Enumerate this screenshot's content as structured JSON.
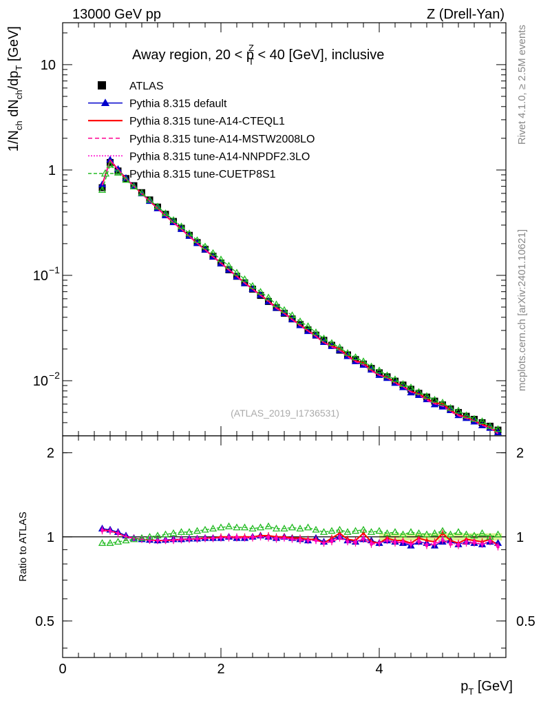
{
  "header": {
    "energy": "13000 GeV pp",
    "process": "Z (Drell-Yan)",
    "title": "Away region, 20 < p",
    "title_sup": "Z",
    "title_sub": "T",
    "title_tail": " < 40 [GeV], inclusive"
  },
  "side": {
    "rivet": "Rivet 4.1.0, ≥ 2.5M events",
    "mcplots": "mcplots.cern.ch [arXiv:2401.10621]"
  },
  "analysis_id": "(ATLAS_2019_I1736531)",
  "colors": {
    "data": "#000000",
    "default": "#0000cc",
    "cteql1": "#ff0000",
    "mstw": "#ff0090",
    "nnpdf": "#ff00cc",
    "cuetp8s1": "#22bb22",
    "band": "#ccee66"
  },
  "chart_data": {
    "type": "line",
    "title": "Away region, 20 < pT^Z < 40 [GeV], inclusive",
    "xlabel": "p_T [GeV]",
    "ylabel": "1/N_ch dN_ch/dp_T [GeV]",
    "ratio_ylabel": "Ratio to ATLAS",
    "xlim": [
      0,
      5.6
    ],
    "ylim": [
      0.003,
      25
    ],
    "ratio_ylim": [
      0.37,
      2.3
    ],
    "yscale": "log",
    "x_ticks": [
      "0",
      "2",
      "4"
    ],
    "y_ticks": [
      {
        "base": "10",
        "exp": "−2"
      },
      {
        "base": "10",
        "exp": "−1"
      },
      {
        "base": "1",
        "exp": ""
      },
      {
        "base": "10",
        "exp": ""
      }
    ],
    "ratio_ticks": [
      "0.5",
      "1",
      "2"
    ],
    "x": [
      0.5,
      0.6,
      0.7,
      0.8,
      0.9,
      1.0,
      1.1,
      1.2,
      1.3,
      1.4,
      1.5,
      1.6,
      1.7,
      1.8,
      1.9,
      2.0,
      2.1,
      2.2,
      2.3,
      2.4,
      2.5,
      2.6,
      2.7,
      2.8,
      2.9,
      3.0,
      3.1,
      3.2,
      3.3,
      3.4,
      3.5,
      3.6,
      3.7,
      3.8,
      3.9,
      4.0,
      4.1,
      4.2,
      4.3,
      4.4,
      4.5,
      4.6,
      4.7,
      4.8,
      4.9,
      5.0,
      5.1,
      5.2,
      5.3,
      5.4,
      5.5
    ],
    "data_values": [
      0.68,
      1.18,
      0.98,
      0.83,
      0.71,
      0.61,
      0.52,
      0.445,
      0.38,
      0.325,
      0.28,
      0.24,
      0.205,
      0.177,
      0.152,
      0.131,
      0.113,
      0.098,
      0.085,
      0.074,
      0.0645,
      0.0565,
      0.0495,
      0.0437,
      0.0386,
      0.0342,
      0.0304,
      0.0271,
      0.0242,
      0.0217,
      0.0195,
      0.0176,
      0.0159,
      0.0144,
      0.0131,
      0.0119,
      0.0109,
      0.0099,
      0.0091,
      0.0083,
      0.0076,
      0.007,
      0.0064,
      0.0059,
      0.0054,
      0.005,
      0.0046,
      0.0043,
      0.004,
      0.0037,
      0.0034
    ],
    "series": [
      {
        "name": "Pythia 8.315 default",
        "color_key": "default",
        "dash": "",
        "marker": "triangle",
        "ratio": [
          1.07,
          1.06,
          1.04,
          1.01,
          0.99,
          0.98,
          0.975,
          0.97,
          0.975,
          0.98,
          0.98,
          0.985,
          0.985,
          0.99,
          0.99,
          0.99,
          1.0,
          0.99,
          0.99,
          1.0,
          1.01,
          1.0,
          0.99,
          1.0,
          0.99,
          0.98,
          0.97,
          0.99,
          0.96,
          0.98,
          1.0,
          0.97,
          0.96,
          0.98,
          0.97,
          0.95,
          0.97,
          0.96,
          0.95,
          0.93,
          0.96,
          0.95,
          0.93,
          0.96,
          0.97,
          0.94,
          0.96,
          0.95,
          0.94,
          0.96,
          0.95
        ]
      },
      {
        "name": "Pythia 8.315 tune-A14-CTEQL1",
        "color_key": "cteql1",
        "dash": "",
        "marker": "none",
        "ratio": [
          1.06,
          1.05,
          1.03,
          1.0,
          0.99,
          0.98,
          0.975,
          0.97,
          0.97,
          0.975,
          0.98,
          0.98,
          0.985,
          0.99,
          0.99,
          1.0,
          1.0,
          1.0,
          1.0,
          1.0,
          1.01,
          1.01,
          1.0,
          1.0,
          0.99,
          0.99,
          0.98,
          0.98,
          0.95,
          0.99,
          1.03,
          0.98,
          0.97,
          1.03,
          0.96,
          0.95,
          0.99,
          0.97,
          0.97,
          0.95,
          0.99,
          0.97,
          0.96,
          1.03,
          0.97,
          0.95,
          0.98,
          0.97,
          0.96,
          0.98,
          0.93
        ]
      },
      {
        "name": "Pythia 8.315 tune-A14-MSTW2008LO",
        "color_key": "mstw",
        "dash": "6,4",
        "marker": "none",
        "ratio": [
          1.05,
          1.05,
          1.03,
          1.0,
          0.99,
          0.98,
          0.97,
          0.97,
          0.97,
          0.97,
          0.975,
          0.98,
          0.98,
          0.985,
          0.985,
          0.99,
          0.99,
          0.99,
          0.99,
          0.99,
          1.0,
          0.99,
          0.98,
          0.99,
          0.98,
          0.97,
          0.97,
          0.97,
          0.95,
          0.96,
          0.99,
          0.96,
          0.95,
          0.98,
          0.94,
          0.95,
          0.97,
          0.95,
          0.96,
          0.94,
          0.96,
          0.93,
          0.94,
          0.97,
          0.94,
          0.93,
          0.95,
          0.95,
          0.94,
          0.96,
          0.92
        ]
      },
      {
        "name": "Pythia 8.315 tune-A14-NNPDF2.3LO",
        "color_key": "nnpdf",
        "dash": "2,2",
        "marker": "none",
        "ratio": [
          1.06,
          1.05,
          1.03,
          1.0,
          0.99,
          0.98,
          0.975,
          0.97,
          0.975,
          0.975,
          0.98,
          0.98,
          0.985,
          0.99,
          0.99,
          0.99,
          1.0,
          1.0,
          0.99,
          1.0,
          1.0,
          1.0,
          0.99,
          0.99,
          0.98,
          0.98,
          0.97,
          0.97,
          0.95,
          0.97,
          1.0,
          0.96,
          0.96,
          0.99,
          0.95,
          0.95,
          0.97,
          0.96,
          0.96,
          0.94,
          0.97,
          0.94,
          0.95,
          0.98,
          0.95,
          0.94,
          0.96,
          0.96,
          0.94,
          0.97,
          0.93
        ]
      },
      {
        "name": "Pythia 8.315 tune-CUETP8S1",
        "color_key": "cuetp8s1",
        "dash": "5,3",
        "marker": "triangle-open",
        "ratio": [
          0.95,
          0.95,
          0.96,
          0.97,
          0.98,
          0.99,
          1.0,
          1.01,
          1.02,
          1.03,
          1.04,
          1.04,
          1.05,
          1.06,
          1.07,
          1.08,
          1.09,
          1.08,
          1.08,
          1.07,
          1.08,
          1.09,
          1.07,
          1.07,
          1.08,
          1.07,
          1.08,
          1.06,
          1.04,
          1.05,
          1.06,
          1.04,
          1.05,
          1.06,
          1.04,
          1.05,
          1.03,
          1.04,
          1.02,
          1.04,
          1.03,
          1.02,
          1.03,
          1.05,
          1.02,
          1.04,
          1.02,
          1.01,
          1.03,
          1.0,
          1.02
        ]
      }
    ],
    "legend_data_label": "ATLAS",
    "legend_position": "top-left"
  }
}
